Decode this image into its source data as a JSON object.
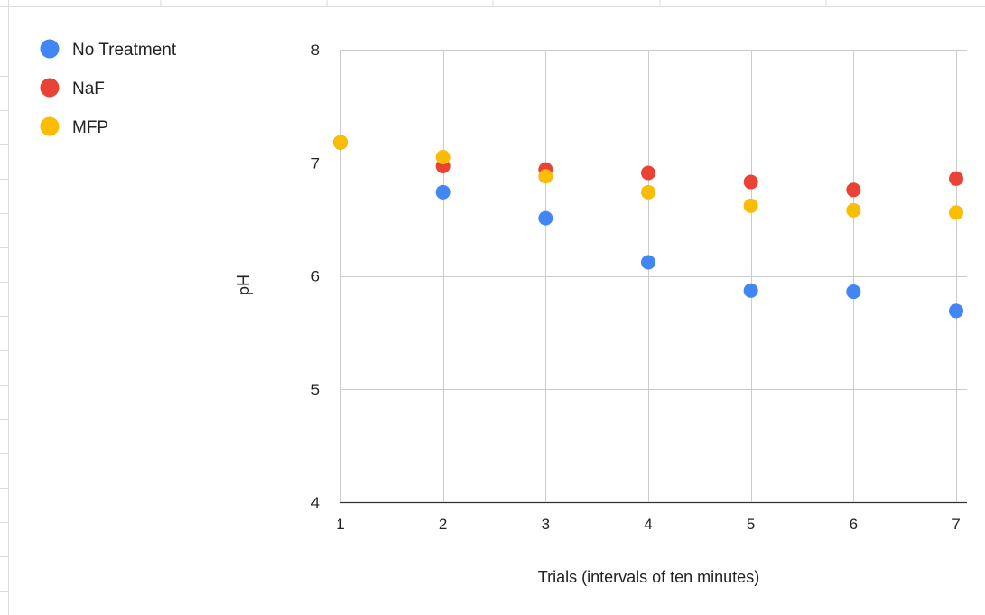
{
  "chart_data": {
    "type": "scatter",
    "title": "",
    "xlabel": "Trials (intervals of ten minutes)",
    "ylabel": "pH",
    "xlim": [
      1,
      7
    ],
    "ylim": [
      4,
      8
    ],
    "x_ticks": [
      1,
      2,
      3,
      4,
      5,
      6,
      7
    ],
    "y_ticks": [
      4,
      5,
      6,
      7,
      8
    ],
    "grid": true,
    "legend_position": "top-left",
    "x": [
      1,
      2,
      3,
      4,
      5,
      6,
      7
    ],
    "series": [
      {
        "name": "No Treatment",
        "color": "#4285f4",
        "values": [
          7.18,
          6.74,
          6.51,
          6.12,
          5.87,
          5.86,
          5.69
        ]
      },
      {
        "name": "NaF",
        "color": "#ea4335",
        "values": [
          7.18,
          6.97,
          6.94,
          6.91,
          6.83,
          6.76,
          6.86
        ]
      },
      {
        "name": "MFP",
        "color": "#fbbc04",
        "values": [
          7.18,
          7.05,
          6.88,
          6.74,
          6.62,
          6.58,
          6.56
        ]
      }
    ]
  }
}
